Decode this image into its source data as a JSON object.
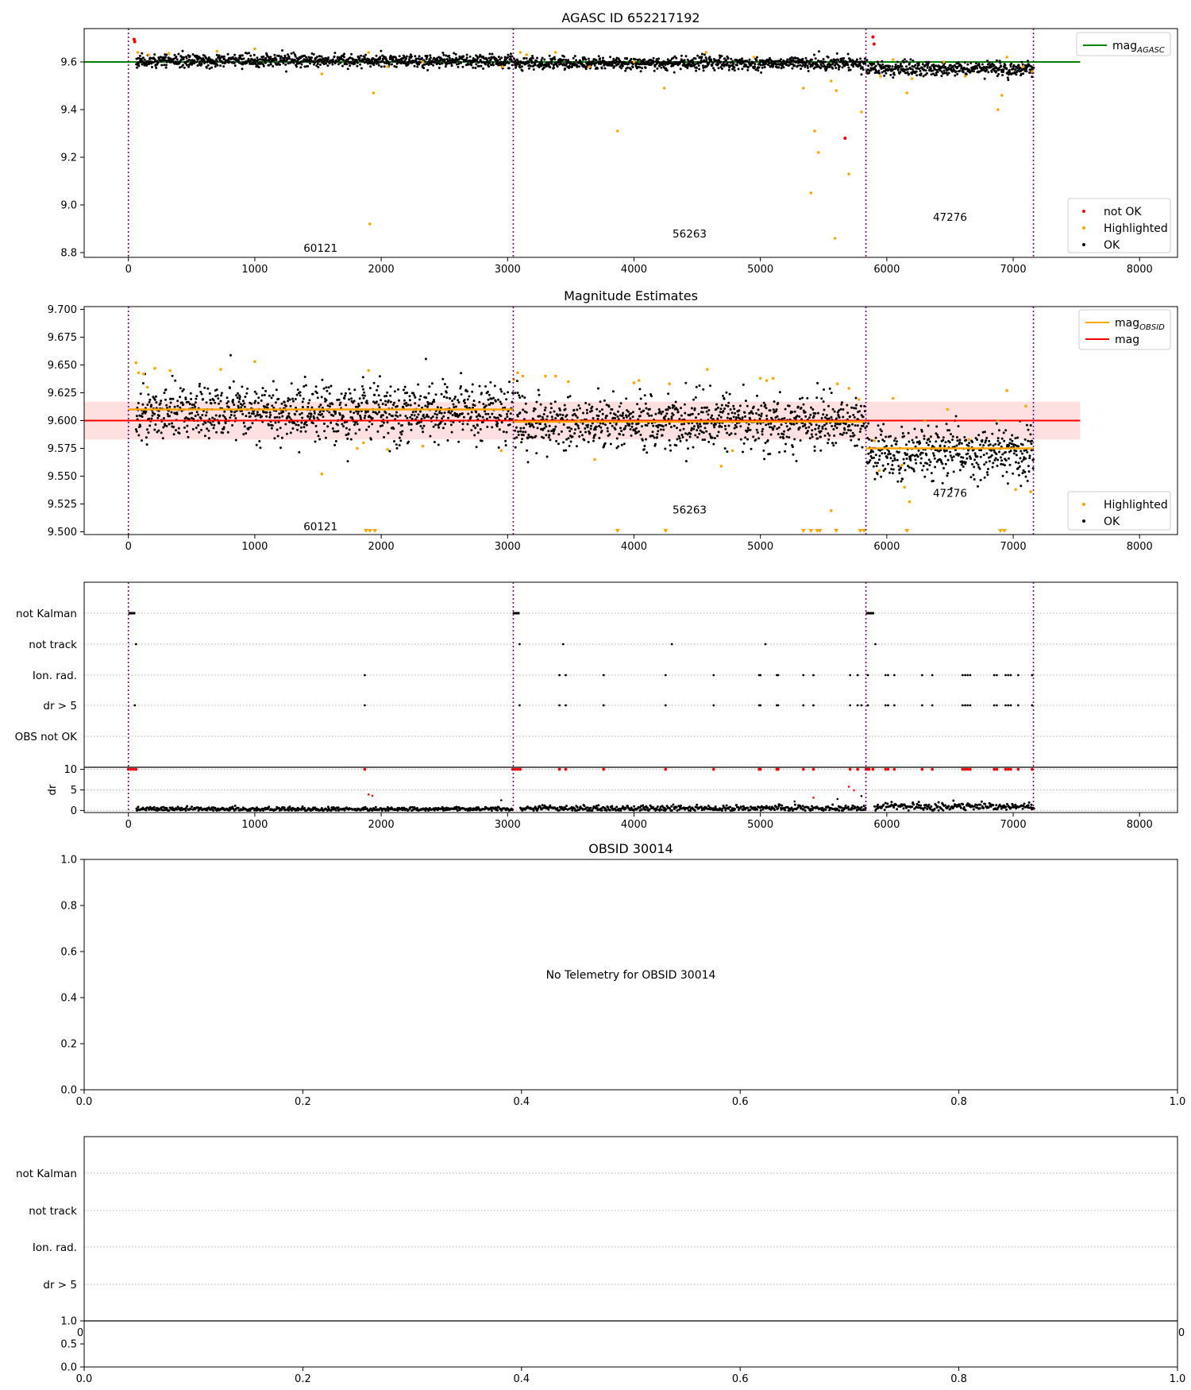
{
  "chart_data": [
    {
      "id": "agasc",
      "type": "scatter",
      "title": "AGASC ID 652217192",
      "xlim": [
        -350,
        8300
      ],
      "ylim": [
        8.78,
        9.74
      ],
      "x_ticks": [
        0,
        1000,
        2000,
        3000,
        4000,
        5000,
        6000,
        7000,
        8000
      ],
      "y_ticks": [
        8.8,
        9.0,
        9.2,
        9.4,
        9.6
      ],
      "y_tick_decimals": 1,
      "grid": false,
      "legend_upper": {
        "position": "upper-right",
        "entries": [
          {
            "label": "mag",
            "subscript": "AGASC",
            "color": "#008000",
            "kind": "line"
          }
        ]
      },
      "legend_lower": {
        "position": "lower-right",
        "entries": [
          {
            "label": "not OK",
            "color": "#ff0000",
            "kind": "point"
          },
          {
            "label": "Highlighted",
            "color": "#ffa500",
            "kind": "point"
          },
          {
            "label": "OK",
            "color": "#000000",
            "kind": "point"
          }
        ]
      },
      "segment_boundaries": [
        0,
        3045,
        5835,
        7160
      ],
      "obsids": [
        {
          "label": "60121",
          "x": 1520,
          "y": 8.82
        },
        {
          "label": "56263",
          "x": 4440,
          "y": 8.88
        },
        {
          "label": "47276",
          "x": 6500,
          "y": 8.95
        }
      ],
      "reference_lines": [
        {
          "y": 9.6,
          "x_range": [
            -350,
            7530
          ],
          "color": "#008000"
        }
      ],
      "ok_segments": [
        {
          "x": [
            60,
            3040
          ],
          "mean": 9.605,
          "spread": 0.013
        },
        {
          "x": [
            3050,
            5830
          ],
          "mean": 9.595,
          "spread": 0.013
        },
        {
          "x": [
            5840,
            7160
          ],
          "mean": 9.572,
          "spread": 0.015
        }
      ],
      "highlighted_points": [
        [
          75,
          9.64
        ],
        [
          160,
          9.63
        ],
        [
          320,
          9.635
        ],
        [
          700,
          9.645
        ],
        [
          1000,
          9.655
        ],
        [
          1530,
          9.55
        ],
        [
          1900,
          9.64
        ],
        [
          1940,
          9.47
        ],
        [
          1910,
          8.92
        ],
        [
          2050,
          9.58
        ],
        [
          2330,
          9.6
        ],
        [
          2960,
          9.58
        ],
        [
          3100,
          9.64
        ],
        [
          3150,
          9.63
        ],
        [
          3380,
          9.64
        ],
        [
          3650,
          9.58
        ],
        [
          3870,
          9.31
        ],
        [
          4000,
          9.6
        ],
        [
          4240,
          9.49
        ],
        [
          4570,
          9.64
        ],
        [
          4950,
          9.62
        ],
        [
          5340,
          9.49
        ],
        [
          5400,
          9.05
        ],
        [
          5430,
          9.31
        ],
        [
          5460,
          9.22
        ],
        [
          5560,
          9.52
        ],
        [
          5590,
          8.86
        ],
        [
          5600,
          9.48
        ],
        [
          5700,
          9.13
        ],
        [
          5800,
          9.39
        ],
        [
          5950,
          9.54
        ],
        [
          6050,
          9.61
        ],
        [
          6160,
          9.47
        ],
        [
          6200,
          9.53
        ],
        [
          6450,
          9.6
        ],
        [
          6620,
          9.54
        ],
        [
          6880,
          9.4
        ],
        [
          6910,
          9.46
        ],
        [
          6950,
          9.62
        ],
        [
          7080,
          9.58
        ],
        [
          7150,
          9.56
        ]
      ],
      "not_ok_points": [
        [
          45,
          9.695
        ],
        [
          50,
          9.685
        ],
        [
          5670,
          9.28
        ],
        [
          5890,
          9.705
        ],
        [
          5900,
          9.675
        ]
      ],
      "ok_outliers": [
        [
          300,
          9.63
        ],
        [
          2980,
          9.62
        ],
        [
          5400,
          9.61
        ]
      ]
    },
    {
      "id": "estimates",
      "type": "scatter",
      "title": "Magnitude Estimates",
      "xlim": [
        -350,
        8300
      ],
      "ylim": [
        9.4975,
        9.7025
      ],
      "x_ticks": [
        0,
        1000,
        2000,
        3000,
        4000,
        5000,
        6000,
        7000,
        8000
      ],
      "y_ticks": [
        9.5,
        9.525,
        9.55,
        9.575,
        9.6,
        9.625,
        9.65,
        9.675,
        9.7
      ],
      "y_tick_decimals": 3,
      "grid": false,
      "legend_upper": {
        "position": "upper-right",
        "entries": [
          {
            "label": "mag",
            "subscript": "OBSID",
            "color": "#ffa500",
            "kind": "line"
          },
          {
            "label": "mag",
            "subscript": "",
            "color": "#ff0000",
            "kind": "line"
          }
        ]
      },
      "legend_lower": {
        "position": "lower-right",
        "entries": [
          {
            "label": "Highlighted",
            "color": "#ffa500",
            "kind": "point"
          },
          {
            "label": "OK",
            "color": "#000000",
            "kind": "point"
          }
        ]
      },
      "segment_boundaries": [
        0,
        3045,
        5835,
        7160
      ],
      "obsids": [
        {
          "label": "60121",
          "x": 1520,
          "y": 9.505
        },
        {
          "label": "56263",
          "x": 4440,
          "y": 9.52
        },
        {
          "label": "47276",
          "x": 6500,
          "y": 9.535
        }
      ],
      "reference_lines": [
        {
          "y": 9.6,
          "x_range": [
            -350,
            7530
          ],
          "color": "#ff0000"
        }
      ],
      "band": {
        "y": [
          9.583,
          9.617
        ],
        "x_range": [
          -350,
          7530
        ],
        "color": "#ff0000",
        "opacity": 0.12
      },
      "obsid_means": [
        {
          "x": [
            0,
            3045
          ],
          "y": 9.61
        },
        {
          "x": [
            3045,
            5835
          ],
          "y": 9.599
        },
        {
          "x": [
            5835,
            7160
          ],
          "y": 9.575
        }
      ],
      "ok_segments": [
        {
          "x": [
            60,
            3040
          ],
          "mean": 9.608,
          "spread": 0.013
        },
        {
          "x": [
            3050,
            5830
          ],
          "mean": 9.598,
          "spread": 0.012
        },
        {
          "x": [
            5840,
            7160
          ],
          "mean": 9.571,
          "spread": 0.012
        }
      ],
      "highlighted_points": [
        [
          60,
          9.652
        ],
        [
          80,
          9.643
        ],
        [
          120,
          9.642
        ],
        [
          150,
          9.63
        ],
        [
          210,
          9.647
        ],
        [
          330,
          9.645
        ],
        [
          730,
          9.646
        ],
        [
          1000,
          9.653
        ],
        [
          1530,
          9.552
        ],
        [
          1810,
          9.575
        ],
        [
          1860,
          9.58
        ],
        [
          1900,
          9.645
        ],
        [
          2050,
          9.574
        ],
        [
          2330,
          9.577
        ],
        [
          2950,
          9.573
        ],
        [
          3050,
          9.637
        ],
        [
          3080,
          9.643
        ],
        [
          3120,
          9.64
        ],
        [
          3300,
          9.64
        ],
        [
          3380,
          9.64
        ],
        [
          3480,
          9.635
        ],
        [
          3560,
          9.6
        ],
        [
          3690,
          9.565
        ],
        [
          4000,
          9.634
        ],
        [
          4040,
          9.636
        ],
        [
          4280,
          9.633
        ],
        [
          4580,
          9.646
        ],
        [
          4690,
          9.559
        ],
        [
          4780,
          9.573
        ],
        [
          5000,
          9.638
        ],
        [
          5050,
          9.636
        ],
        [
          5100,
          9.638
        ],
        [
          5300,
          9.599
        ],
        [
          5560,
          9.519
        ],
        [
          5610,
          9.633
        ],
        [
          5700,
          9.629
        ],
        [
          5780,
          9.619
        ],
        [
          5900,
          9.582
        ],
        [
          5940,
          9.555
        ],
        [
          6050,
          9.62
        ],
        [
          6120,
          9.56
        ],
        [
          6140,
          9.54
        ],
        [
          6180,
          9.527
        ],
        [
          6300,
          9.6
        ],
        [
          6480,
          9.61
        ],
        [
          6650,
          9.583
        ],
        [
          6880,
          9.6
        ],
        [
          6950,
          9.627
        ],
        [
          7020,
          9.538
        ],
        [
          7100,
          9.613
        ],
        [
          7140,
          9.536
        ]
      ],
      "clipped_points": [
        1880,
        1910,
        1950,
        3870,
        4250,
        5340,
        5400,
        5450,
        5470,
        5600,
        5790,
        5820,
        6160,
        6900,
        6930
      ],
      "ok_outliers": [
        [
          3030,
          9.61
        ],
        [
          3080,
          9.625
        ]
      ]
    },
    {
      "id": "flags-agasc",
      "type": "scatter",
      "xlim": [
        -350,
        8300
      ],
      "x_ticks": [
        0,
        1000,
        2000,
        3000,
        4000,
        5000,
        6000,
        7000,
        8000
      ],
      "categories": [
        "not Kalman",
        "not track",
        "Ion. rad.",
        "dr > 5",
        "OBS not OK"
      ],
      "segment_boundaries": [
        0,
        3045,
        5835,
        7160
      ],
      "flag_points": {
        "not Kalman": [
          [
            0,
            55
          ],
          [
            3040,
            3095
          ],
          [
            5835,
            5900
          ]
        ],
        "not track": [
          60,
          3095,
          3440,
          4300,
          5040,
          5910
        ],
        "Ion. rad.": [
          1870,
          3410,
          3460,
          3760,
          4250,
          4630,
          4990,
          5000,
          5130,
          5140,
          5340,
          5420,
          5710,
          5770,
          5850,
          5990,
          6010,
          6060,
          6280,
          6360,
          6600,
          6620,
          6640,
          6660,
          6850,
          6870,
          6940,
          6960,
          6980,
          7040,
          7150
        ],
        "dr > 5": [
          50,
          1870,
          3095,
          3410,
          3460,
          3760,
          4250,
          4630,
          4990,
          5000,
          5130,
          5140,
          5340,
          5420,
          5710,
          5770,
          5800,
          5850,
          5990,
          6010,
          6060,
          6280,
          6360,
          6600,
          6620,
          6640,
          6660,
          6850,
          6870,
          6940,
          6960,
          6980,
          7040,
          7150
        ],
        "OBS not OK": []
      },
      "dr_panel": {
        "ylabel": "dr",
        "ylim": [
          -0.5,
          10.5
        ],
        "y_ticks": [
          0,
          5,
          10
        ],
        "grid_y": [
          0,
          5,
          10
        ],
        "max_flag_color": "#ff0000",
        "max_flag_x": [
          0,
          20,
          40,
          60,
          3040,
          3060,
          3080,
          3100,
          5835,
          5860,
          5890,
          1870,
          3410,
          3460,
          3760,
          4250,
          4630,
          4990,
          5000,
          5130,
          5140,
          5340,
          5420,
          5710,
          5770,
          5850,
          5990,
          6010,
          6060,
          6280,
          6360,
          6600,
          6620,
          6640,
          6660,
          6850,
          6870,
          6940,
          6960,
          6980,
          7040,
          7150
        ],
        "segments": [
          {
            "x": [
              60,
              3040
            ],
            "mean": 0.35,
            "spread": 0.25
          },
          {
            "x": [
              3100,
              5830
            ],
            "mean": 0.5,
            "spread": 0.35
          },
          {
            "x": [
              5900,
              7160
            ],
            "mean": 1.0,
            "spread": 0.5
          }
        ],
        "red_points": [
          [
            1900,
            3.9
          ],
          [
            1930,
            3.6
          ],
          [
            5420,
            3.1
          ],
          [
            5700,
            5.8
          ],
          [
            5740,
            4.9
          ]
        ],
        "black_outliers": [
          [
            2950,
            2.5
          ],
          [
            5270,
            2.2
          ],
          [
            5610,
            2.8
          ],
          [
            5800,
            3.5
          ]
        ]
      }
    },
    {
      "id": "obsid-telemetry",
      "type": "scatter",
      "title": "OBSID 30014",
      "message": "No Telemetry for OBSID 30014",
      "xlim": [
        0,
        1
      ],
      "ylim": [
        0,
        1
      ],
      "x_ticks": [
        0.0,
        0.2,
        0.4,
        0.6,
        0.8,
        1.0
      ],
      "y_ticks": [
        0.0,
        0.2,
        0.4,
        0.6,
        0.8,
        1.0
      ],
      "tick_decimals": 1
    },
    {
      "id": "flags-obsid",
      "type": "scatter",
      "categories": [
        "not Kalman",
        "not track",
        "Ion. rad.",
        "dr > 5"
      ],
      "sub_ylim": [
        0,
        1
      ],
      "sub_y_ticks": [
        0.0,
        0.5,
        1.0
      ],
      "x_ticks": [
        0.0,
        0.2,
        0.4,
        0.6,
        0.8,
        1.0
      ],
      "tick_decimals": 1,
      "hidden_tick_edges": [
        "0",
        "0"
      ]
    }
  ]
}
